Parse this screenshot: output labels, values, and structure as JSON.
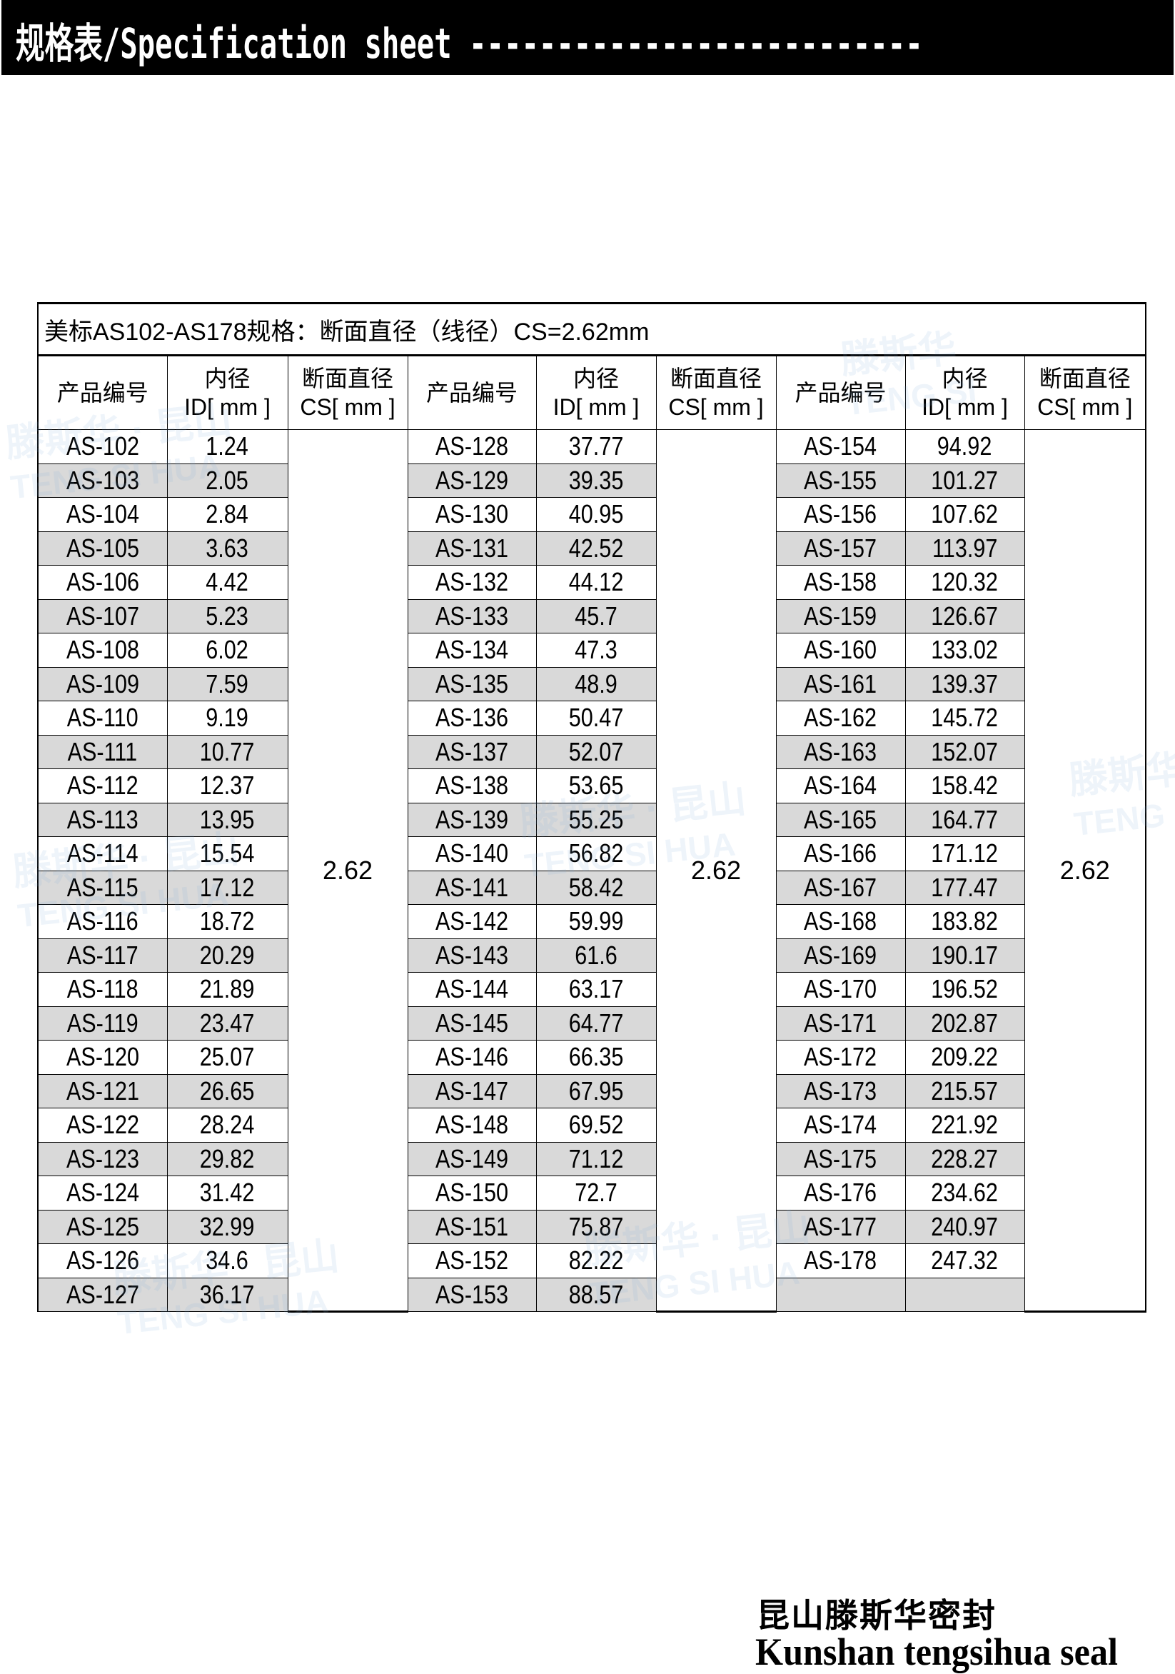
{
  "header": {
    "title": "规格表/Specification sheet --------------------------"
  },
  "watermark": {
    "cn": "滕斯华 · 昆山",
    "en": "TENG SI HUA"
  },
  "table": {
    "title": "美标AS102-AS178规格：断面直径（线径）CS=2.62mm",
    "headers": [
      {
        "l1": "产品编号",
        "l2": ""
      },
      {
        "l1": "内径",
        "l2": "ID[ mm ]"
      },
      {
        "l1": "断面直径",
        "l2": "CS[ mm ]"
      }
    ],
    "groups": [
      {
        "cs": "2.62",
        "codes": [
          "AS-102",
          "AS-103",
          "AS-104",
          "AS-105",
          "AS-106",
          "AS-107",
          "AS-108",
          "AS-109",
          "AS-110",
          "AS-111",
          "AS-112",
          "AS-113",
          "AS-114",
          "AS-115",
          "AS-116",
          "AS-117",
          "AS-118",
          "AS-119",
          "AS-120",
          "AS-121",
          "AS-122",
          "AS-123",
          "AS-124",
          "AS-125",
          "AS-126",
          "AS-127"
        ],
        "ids": [
          "1.24",
          "2.05",
          "2.84",
          "3.63",
          "4.42",
          "5.23",
          "6.02",
          "7.59",
          "9.19",
          "10.77",
          "12.37",
          "13.95",
          "15.54",
          "17.12",
          "18.72",
          "20.29",
          "21.89",
          "23.47",
          "25.07",
          "26.65",
          "28.24",
          "29.82",
          "31.42",
          "32.99",
          "34.6",
          "36.17"
        ]
      },
      {
        "cs": "2.62",
        "codes": [
          "AS-128",
          "AS-129",
          "AS-130",
          "AS-131",
          "AS-132",
          "AS-133",
          "AS-134",
          "AS-135",
          "AS-136",
          "AS-137",
          "AS-138",
          "AS-139",
          "AS-140",
          "AS-141",
          "AS-142",
          "AS-143",
          "AS-144",
          "AS-145",
          "AS-146",
          "AS-147",
          "AS-148",
          "AS-149",
          "AS-150",
          "AS-151",
          "AS-152",
          "AS-153"
        ],
        "ids": [
          "37.77",
          "39.35",
          "40.95",
          "42.52",
          "44.12",
          "45.7",
          "47.3",
          "48.9",
          "50.47",
          "52.07",
          "53.65",
          "55.25",
          "56.82",
          "58.42",
          "59.99",
          "61.6",
          "63.17",
          "64.77",
          "66.35",
          "67.95",
          "69.52",
          "71.12",
          "72.7",
          "75.87",
          "82.22",
          "88.57"
        ]
      },
      {
        "cs": "2.62",
        "codes": [
          "AS-154",
          "AS-155",
          "AS-156",
          "AS-157",
          "AS-158",
          "AS-159",
          "AS-160",
          "AS-161",
          "AS-162",
          "AS-163",
          "AS-164",
          "AS-165",
          "AS-166",
          "AS-167",
          "AS-168",
          "AS-169",
          "AS-170",
          "AS-171",
          "AS-172",
          "AS-173",
          "AS-174",
          "AS-175",
          "AS-176",
          "AS-177",
          "AS-178",
          ""
        ],
        "ids": [
          "94.92",
          "101.27",
          "107.62",
          "113.97",
          "120.32",
          "126.67",
          "133.02",
          "139.37",
          "145.72",
          "152.07",
          "158.42",
          "164.77",
          "171.12",
          "177.47",
          "183.82",
          "190.17",
          "196.52",
          "202.87",
          "209.22",
          "215.57",
          "221.92",
          "228.27",
          "234.62",
          "240.97",
          "247.32",
          ""
        ]
      }
    ]
  },
  "footer": {
    "company_cn": "昆山滕斯华密封",
    "company_en": "Kunshan tengsihua seal"
  },
  "colors": {
    "header_bg": "#000000",
    "alt_row": "#d9d9d9",
    "watermark": "#78aad7"
  }
}
